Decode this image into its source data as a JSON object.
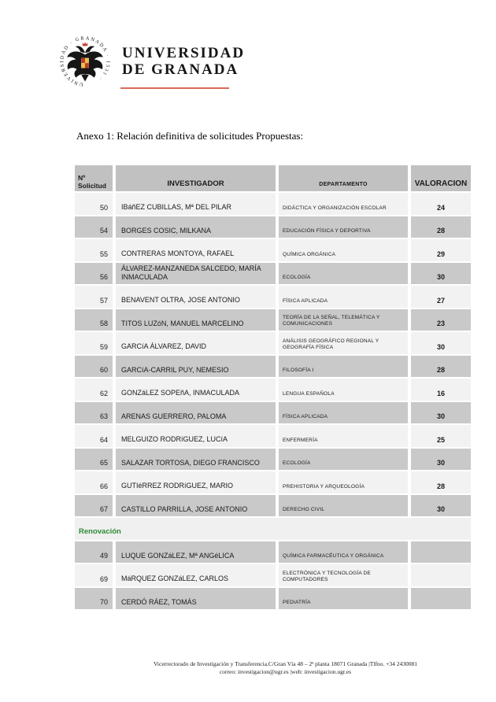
{
  "colors": {
    "accent": "#d96b55",
    "green": "#2e8b34",
    "header_bg": "#c1c1c1",
    "row_light": "#f2f2f2",
    "row_dark": "#c9c9c9"
  },
  "logo": {
    "wordmark": "UNIVERSIDAD\nDE GRANADA",
    "seal_ring_text": "UNIVERSIDAD · GRANADA · 1531 ·"
  },
  "title": "Anexo 1: Relación definitiva de solicitudes Propuestas:",
  "table": {
    "header": {
      "col1_line1": "Nº",
      "col1_line2": "Solicitud",
      "col2": "INVESTIGADOR",
      "col3": "DEPARTAMENTO",
      "col4": "VALORACION"
    },
    "rows": [
      {
        "num": "50",
        "investigador": "IBáñEZ CUBILLAS, Mª DEL PILAR",
        "departamento": "DIDÁCTICA Y ORGANIZACIÓN ESCOLAR",
        "valoracion": "24"
      },
      {
        "num": "54",
        "investigador": "BORGES COSIC, MILKANA",
        "departamento": "EDUCACIÓN FÍSICA Y DEPORTIVA",
        "valoracion": "28"
      },
      {
        "num": "55",
        "investigador": "CONTRERAS MONTOYA, RAFAEL",
        "departamento": "QUÍMICA ORGÁNICA",
        "valoracion": "29"
      },
      {
        "num": "56",
        "investigador": "ÁLVAREZ-MANZANEDA SALCEDO, MARÍA INMACULADA",
        "departamento": "ECOLOGÍA",
        "valoracion": "30"
      },
      {
        "num": "57",
        "investigador": "BENAVENT OLTRA, JOSE ANTONIO",
        "departamento": "FÍSICA APLICADA",
        "valoracion": "27"
      },
      {
        "num": "58",
        "investigador": "TITOS LUZóN, MANUEL MARCELINO",
        "departamento": "TEORÍA DE LA SEÑAL, TELEMÁTICA Y COMUNICACIONES",
        "valoracion": "23"
      },
      {
        "num": "59",
        "investigador": "GARCíA ÁLVAREZ, DAVID",
        "departamento": "ANÁLISIS GEOGRÁFICO REGIONAL Y GEOGRAFÍA FÍSICA",
        "valoracion": "30"
      },
      {
        "num": "60",
        "investigador": "GARCíA-CARRIL PUY, NEMESIO",
        "departamento": "FILOSOFÍA I",
        "valoracion": "28"
      },
      {
        "num": "62",
        "investigador": "GONZáLEZ SOPEñA, INMACULADA",
        "departamento": "LENGUA ESPAÑOLA",
        "valoracion": "16"
      },
      {
        "num": "63",
        "investigador": "ARENAS GUERRERO, PALOMA",
        "departamento": "FÍSICA APLICADA",
        "valoracion": "30"
      },
      {
        "num": "64",
        "investigador": "MELGUIZO RODRíGUEZ, LUCíA",
        "departamento": "ENFERMERÍA",
        "valoracion": "25"
      },
      {
        "num": "65",
        "investigador": "SALAZAR TORTOSA, DIEGO FRANCISCO",
        "departamento": "ECOLOGÍA",
        "valoracion": "30"
      },
      {
        "num": "66",
        "investigador": "GUTIéRREZ RODRíGUEZ, MARIO",
        "departamento": "PREHISTORIA Y ARQUEOLOGÍA",
        "valoracion": "28"
      },
      {
        "num": "67",
        "investigador": "CASTILLO PARRILLA, JOSE ANTONIO",
        "departamento": "DERECHO CIVIL",
        "valoracion": "30"
      },
      {
        "section": true,
        "label": "Renovación"
      },
      {
        "num": "49",
        "investigador": "LUQUE GONZáLEZ, Mª ANGéLICA",
        "departamento": "QUÍMICA FARMACÉUTICA Y ORGÁNICA",
        "valoracion": ""
      },
      {
        "num": "69",
        "investigador": "MáRQUEZ GONZáLEZ, CARLOS",
        "departamento": "ELECTRÓNICA Y TECNOLOGÍA DE COMPUTADORES",
        "valoracion": ""
      },
      {
        "num": "70",
        "investigador": "CERDÓ RÁEZ, TOMÁS",
        "departamento": "PEDIATRÍA",
        "valoracion": ""
      }
    ]
  },
  "footer": {
    "line1": "Vicerrectorado de Investigación y Transferencia.C/Gran Vía 48 – 2ª planta 18071 Granada |Tlfno. +34 2430081",
    "line2": "correo: investigacion@ugr.es |web: investigacion.ugr.es"
  }
}
